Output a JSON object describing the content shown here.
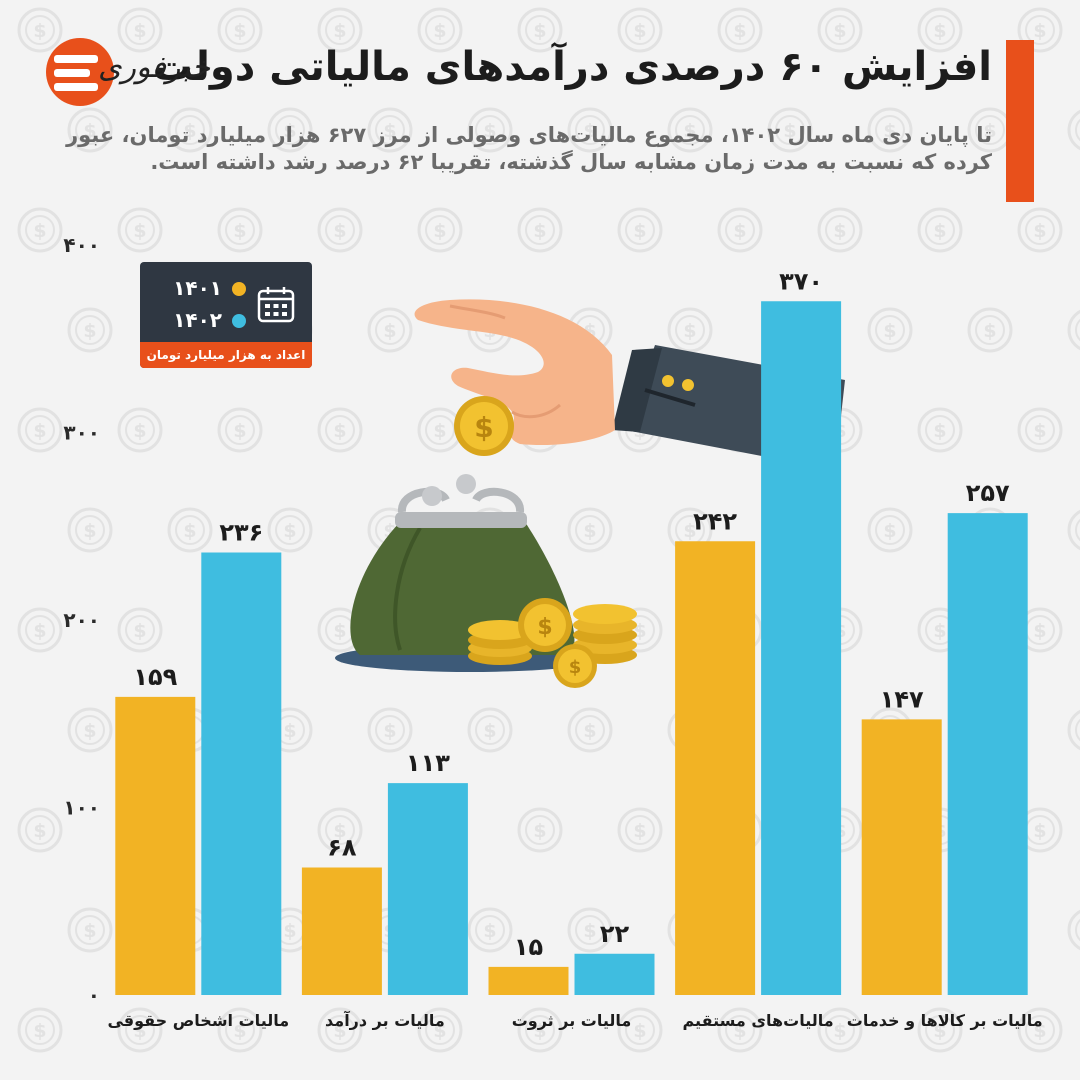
{
  "header": {
    "title": "افزایش ۶۰ درصدی درآمدهای مالیاتی دولت",
    "subtitle": "تا پایان دی ماه سال ۱۴۰۲، مجموع مالیات‌های وصولی از مرز ۶۲۷ هزار میلیارد تومان، عبور کرده که نسبت به مدت زمان مشابه سال گذشته، تقریبا ۶۲ درصد رشد داشته است.",
    "brand_name": "خبرفوری",
    "accent_color": "#e8501b"
  },
  "legend": {
    "note": "اعداد به هزار میلیارد تومان است",
    "icon": "calendar-icon",
    "items": [
      {
        "label": "۱۴۰۱",
        "color": "#f2b324"
      },
      {
        "label": "۱۴۰۲",
        "color": "#3fbde0"
      }
    ]
  },
  "illustration": {
    "icons": [
      "hand-icon",
      "coin-purse-icon",
      "coin-stack-icon"
    ]
  },
  "chart_data": {
    "type": "bar",
    "categories": [
      "مالیات اشخاص حقوقی",
      "مالیات بر درآمد",
      "مالیات بر ثروت",
      "مالیات‌های مستقیم",
      "مالیات بر کالاها و خدمات"
    ],
    "series": [
      {
        "name": "۱۴۰۱",
        "color": "#f2b324",
        "values": [
          159,
          68,
          15,
          242,
          147
        ],
        "labels": [
          "۱۵۹",
          "۶۸",
          "۱۵",
          "۲۴۲",
          "۱۴۷"
        ]
      },
      {
        "name": "۱۴۰۲",
        "color": "#3fbde0",
        "values": [
          236,
          113,
          22,
          370,
          257
        ],
        "labels": [
          "۲۳۶",
          "۱۱۳",
          "۲۲",
          "۳۷۰",
          "۲۵۷"
        ]
      }
    ],
    "ylim": [
      0,
      400
    ],
    "yticks": [
      {
        "value": 0,
        "label": "۰"
      },
      {
        "value": 100,
        "label": "۱۰۰"
      },
      {
        "value": 200,
        "label": "۲۰۰"
      },
      {
        "value": 300,
        "label": "۳۰۰"
      },
      {
        "value": 400,
        "label": "۴۰۰"
      }
    ],
    "grid": false,
    "legend_position": "top-left"
  }
}
